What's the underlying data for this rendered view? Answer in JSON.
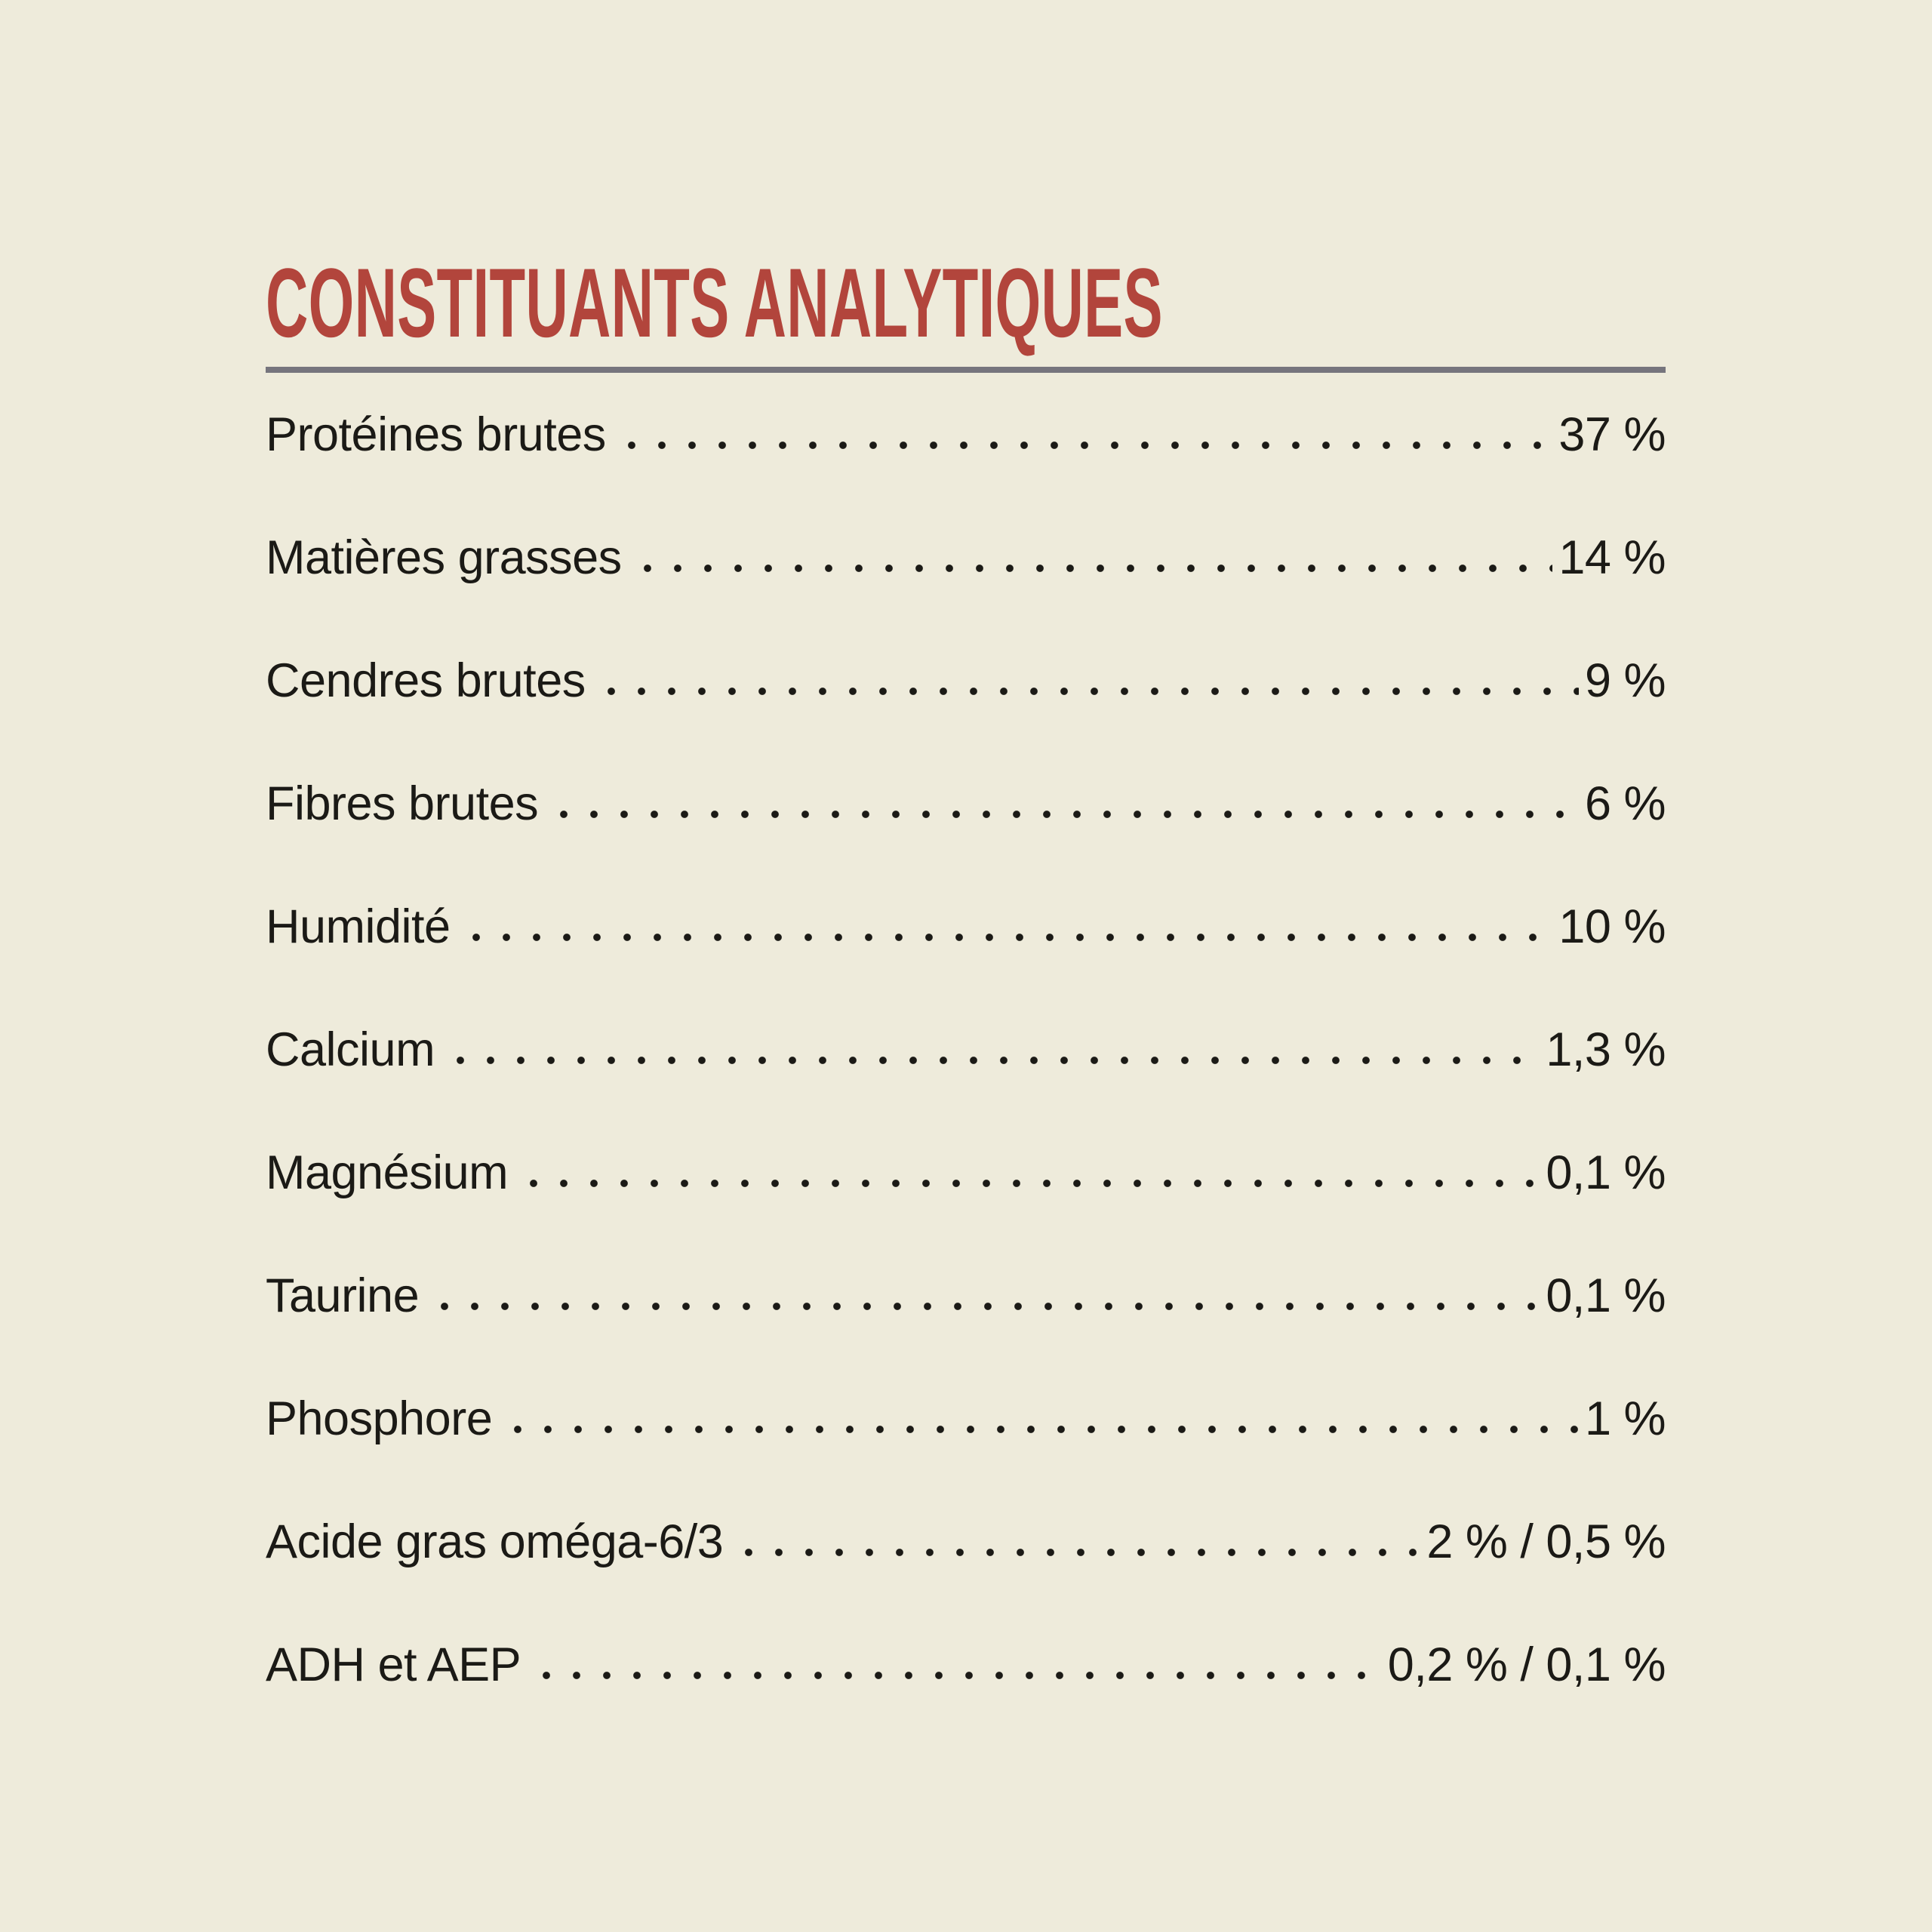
{
  "page": {
    "background_color": "#EEEBDB",
    "ink_color": "#1B1A16"
  },
  "panel": {
    "title": "CONSTITUANTS ANALYTIQUES",
    "title_color": "#B2453C",
    "divider_color": "#76757D",
    "rows": [
      {
        "label": "Protéines brutes",
        "value": "37 %"
      },
      {
        "label": "Matières grasses",
        "value": "14 %"
      },
      {
        "label": "Cendres brutes",
        "value": "9 %"
      },
      {
        "label": "Fibres brutes",
        "value": "6 %"
      },
      {
        "label": "Humidité",
        "value": "10 %"
      },
      {
        "label": "Calcium",
        "value": "1,3 %"
      },
      {
        "label": "Magnésium",
        "value": "0,1 %"
      },
      {
        "label": "Taurine",
        "value": "0,1 %"
      },
      {
        "label": "Phosphore",
        "value": "1 %"
      },
      {
        "label": "Acide gras oméga-6/3",
        "value": "2 % / 0,5 %"
      },
      {
        "label": "ADH et AEP",
        "value": "0,2 % / 0,1 %"
      }
    ]
  }
}
